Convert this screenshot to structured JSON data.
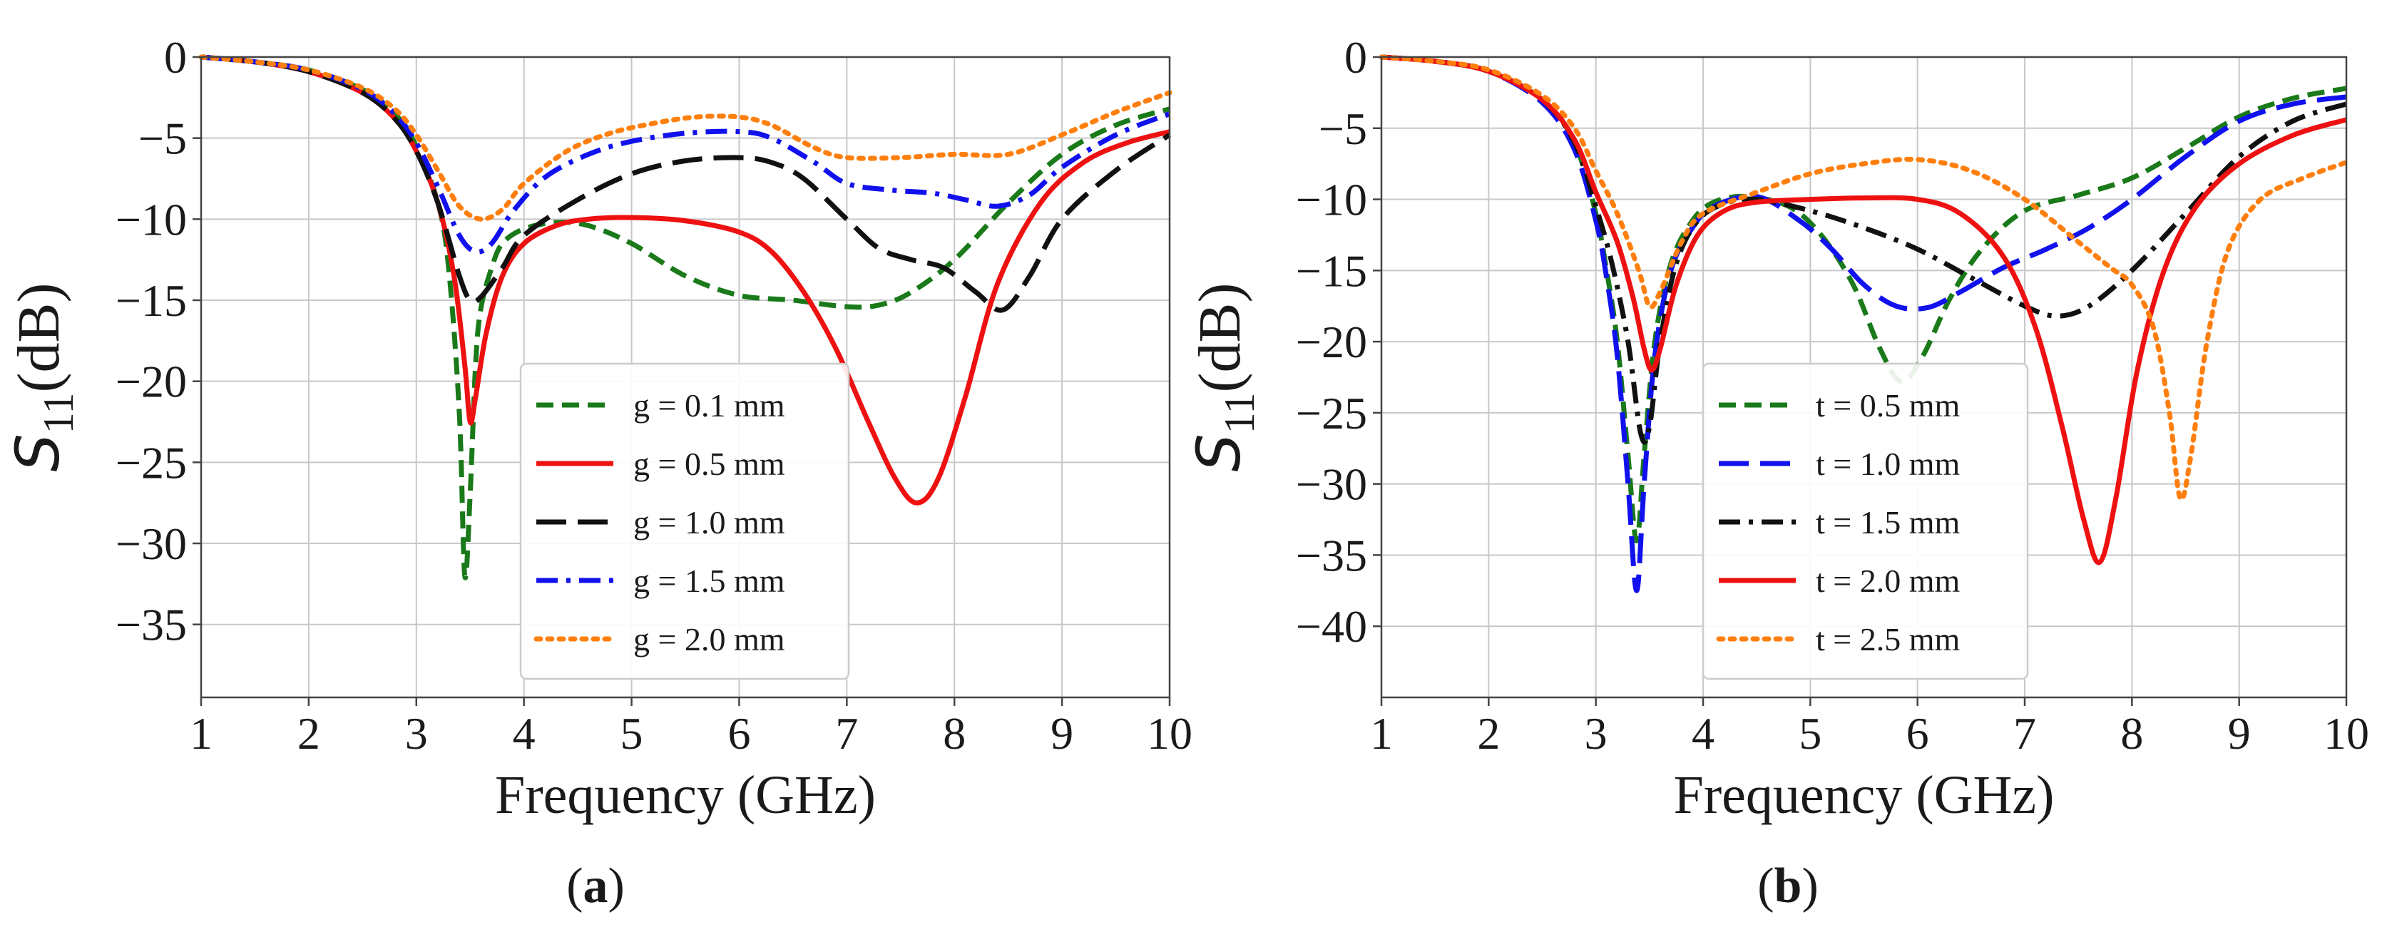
{
  "chart_data": [
    {
      "type": "line",
      "panel_label": "a",
      "xlabel": "Frequency (GHz)",
      "ylabel_main": "S",
      "ylabel_sub": "11",
      "ylabel_suffix": "(dB)",
      "xlim": [
        1,
        10
      ],
      "ylim": [
        -39.5,
        0
      ],
      "xticks": [
        1,
        2,
        3,
        4,
        5,
        6,
        7,
        8,
        9,
        10
      ],
      "yticks": [
        0,
        -5,
        -10,
        -15,
        -20,
        -25,
        -30,
        -35
      ],
      "ytick_labels": [
        "0",
        "−5",
        "−10",
        "−15",
        "−20",
        "−25",
        "−30",
        "−35"
      ],
      "grid": true,
      "legend_position": "lower-center",
      "series": [
        {
          "name": "g = 0.1 mm",
          "color": "#1a7a1a",
          "dash": "dashed",
          "x": [
            1,
            1.5,
            2,
            2.5,
            2.8,
            3.0,
            3.2,
            3.3,
            3.4,
            3.45,
            3.5,
            3.55,
            3.6,
            3.7,
            3.8,
            4.0,
            4.3,
            4.6,
            5.0,
            5.5,
            6.0,
            6.5,
            7.0,
            7.3,
            7.6,
            8.0,
            8.5,
            9.0,
            9.5,
            10
          ],
          "y": [
            0,
            -0.3,
            -0.8,
            -2.0,
            -3.5,
            -5.5,
            -9.0,
            -13.0,
            -22.0,
            -32.0,
            -27.0,
            -19.0,
            -15.5,
            -13.0,
            -11.5,
            -10.6,
            -10.2,
            -10.4,
            -11.5,
            -13.5,
            -14.7,
            -15.0,
            -15.4,
            -15.3,
            -14.5,
            -12.5,
            -9.0,
            -6.0,
            -4.2,
            -3.2
          ]
        },
        {
          "name": "g = 0.5 mm",
          "color": "#ee1111",
          "dash": "solid",
          "x": [
            1,
            1.5,
            2,
            2.5,
            2.8,
            3.0,
            3.2,
            3.35,
            3.45,
            3.5,
            3.55,
            3.65,
            3.8,
            4.0,
            4.3,
            4.6,
            5.0,
            5.5,
            6.0,
            6.3,
            6.6,
            6.9,
            7.2,
            7.45,
            7.65,
            7.85,
            8.1,
            8.4,
            8.8,
            9.2,
            9.6,
            10
          ],
          "y": [
            0,
            -0.3,
            -0.9,
            -2.2,
            -3.8,
            -5.8,
            -9.0,
            -13.5,
            -19.0,
            -22.5,
            -21.0,
            -17.0,
            -13.5,
            -11.5,
            -10.4,
            -10.0,
            -9.9,
            -10.1,
            -10.8,
            -12.0,
            -14.5,
            -18.0,
            -22.5,
            -26.0,
            -27.5,
            -26.0,
            -21.0,
            -14.0,
            -9.0,
            -6.5,
            -5.3,
            -4.6
          ]
        },
        {
          "name": "g = 1.0 mm",
          "color": "#111111",
          "dash": "longdash",
          "x": [
            1,
            1.5,
            2,
            2.5,
            2.8,
            3.0,
            3.2,
            3.4,
            3.5,
            3.6,
            3.8,
            4.0,
            4.5,
            5.0,
            5.5,
            6.0,
            6.3,
            6.6,
            7.0,
            7.3,
            7.6,
            7.9,
            8.2,
            8.45,
            8.7,
            9.0,
            9.5,
            10
          ],
          "y": [
            0,
            -0.3,
            -0.9,
            -2.2,
            -3.8,
            -5.8,
            -9.0,
            -13.5,
            -15.0,
            -14.8,
            -13.0,
            -11.0,
            -8.8,
            -7.2,
            -6.4,
            -6.2,
            -6.5,
            -7.5,
            -10.0,
            -11.8,
            -12.5,
            -13.0,
            -14.5,
            -15.6,
            -13.5,
            -10.0,
            -7.0,
            -4.8
          ]
        },
        {
          "name": "g = 1.5 mm",
          "color": "#1111ee",
          "dash": "dashdot",
          "x": [
            1,
            1.5,
            2,
            2.5,
            2.8,
            3.0,
            3.2,
            3.4,
            3.55,
            3.7,
            3.9,
            4.2,
            4.6,
            5.0,
            5.5,
            6.0,
            6.3,
            6.7,
            7.0,
            7.4,
            7.8,
            8.1,
            8.4,
            8.7,
            9.0,
            9.5,
            10
          ],
          "y": [
            0,
            -0.3,
            -0.8,
            -2.0,
            -3.5,
            -5.3,
            -8.0,
            -11.0,
            -12.0,
            -11.5,
            -9.5,
            -7.4,
            -6.0,
            -5.2,
            -4.7,
            -4.6,
            -5.0,
            -6.5,
            -7.8,
            -8.2,
            -8.4,
            -8.8,
            -9.2,
            -8.5,
            -6.8,
            -4.8,
            -3.5
          ]
        },
        {
          "name": "g = 2.0 mm",
          "color": "#ff7f0e",
          "dash": "dotted",
          "x": [
            1,
            1.5,
            2,
            2.5,
            2.8,
            3.0,
            3.2,
            3.4,
            3.6,
            3.8,
            4.0,
            4.4,
            4.8,
            5.2,
            5.6,
            6.0,
            6.3,
            6.7,
            7.0,
            7.5,
            8.0,
            8.5,
            9.0,
            9.5,
            10
          ],
          "y": [
            0,
            -0.3,
            -0.8,
            -1.9,
            -3.2,
            -4.8,
            -7.0,
            -9.2,
            -10.0,
            -9.4,
            -7.8,
            -5.8,
            -4.7,
            -4.1,
            -3.7,
            -3.7,
            -4.2,
            -5.6,
            -6.2,
            -6.2,
            -6.0,
            -6.0,
            -4.8,
            -3.4,
            -2.2
          ]
        }
      ]
    },
    {
      "type": "line",
      "panel_label": "b",
      "xlabel": "Frequency (GHz)",
      "ylabel_main": "S",
      "ylabel_sub": "11",
      "ylabel_suffix": "(dB)",
      "xlim": [
        1,
        10
      ],
      "ylim": [
        -45,
        0
      ],
      "xticks": [
        1,
        2,
        3,
        4,
        5,
        6,
        7,
        8,
        9,
        10
      ],
      "yticks": [
        0,
        -5,
        -10,
        -15,
        -20,
        -25,
        -30,
        -35,
        -40
      ],
      "ytick_labels": [
        "0",
        "−5",
        "−10",
        "−15",
        "−20",
        "−25",
        "−30",
        "−35",
        "−40"
      ],
      "grid": true,
      "legend_position": "lower-center",
      "series": [
        {
          "name": "t = 0.5 mm",
          "color": "#1a7a1a",
          "dash": "dashed",
          "x": [
            1,
            1.5,
            2,
            2.5,
            2.8,
            3.0,
            3.1,
            3.2,
            3.3,
            3.38,
            3.45,
            3.55,
            3.7,
            3.9,
            4.1,
            4.4,
            4.8,
            5.1,
            5.4,
            5.65,
            5.85,
            6.05,
            6.3,
            6.6,
            7.0,
            7.5,
            8.0,
            8.5,
            9.0,
            9.5,
            10
          ],
          "y": [
            0,
            -0.3,
            -1.0,
            -3.0,
            -6.0,
            -11.0,
            -15.0,
            -20.0,
            -28.0,
            -34.0,
            -28.0,
            -20.0,
            -14.5,
            -11.5,
            -10.2,
            -9.8,
            -10.5,
            -12.5,
            -16.0,
            -20.5,
            -22.8,
            -21.0,
            -17.0,
            -13.5,
            -10.8,
            -9.7,
            -8.5,
            -6.4,
            -4.2,
            -2.9,
            -2.2
          ]
        },
        {
          "name": "t = 1.0 mm",
          "color": "#1111ee",
          "dash": "longdash",
          "x": [
            1,
            1.5,
            2,
            2.5,
            2.8,
            3.0,
            3.1,
            3.2,
            3.3,
            3.38,
            3.45,
            3.55,
            3.7,
            3.9,
            4.1,
            4.5,
            4.9,
            5.2,
            5.5,
            5.8,
            6.1,
            6.4,
            6.8,
            7.2,
            7.6,
            8.0,
            8.5,
            9.0,
            9.5,
            10
          ],
          "y": [
            0,
            -0.3,
            -1.0,
            -3.2,
            -6.5,
            -11.5,
            -15.5,
            -21.0,
            -30.0,
            -37.5,
            -30.0,
            -21.0,
            -15.0,
            -12.0,
            -10.5,
            -9.8,
            -11.5,
            -13.5,
            -16.0,
            -17.5,
            -17.6,
            -16.5,
            -14.8,
            -13.5,
            -12.0,
            -10.0,
            -7.0,
            -4.5,
            -3.3,
            -2.8
          ]
        },
        {
          "name": "t = 1.5 mm",
          "color": "#111111",
          "dash": "dashdot",
          "x": [
            1,
            1.5,
            2,
            2.5,
            2.8,
            3.0,
            3.15,
            3.3,
            3.42,
            3.5,
            3.6,
            3.75,
            3.95,
            4.2,
            4.5,
            5.0,
            5.5,
            6.0,
            6.5,
            7.0,
            7.3,
            7.6,
            8.0,
            8.5,
            9.0,
            9.5,
            10
          ],
          "y": [
            0,
            -0.3,
            -1.0,
            -3.0,
            -6.0,
            -10.5,
            -14.5,
            -20.0,
            -26.5,
            -26.0,
            -20.0,
            -14.5,
            -11.5,
            -10.3,
            -10.0,
            -10.8,
            -12.0,
            -13.5,
            -15.5,
            -17.5,
            -18.2,
            -17.5,
            -15.0,
            -11.0,
            -7.0,
            -4.5,
            -3.3
          ]
        },
        {
          "name": "t = 2.0 mm",
          "color": "#ee1111",
          "dash": "solid",
          "x": [
            1,
            1.5,
            2,
            2.5,
            2.8,
            3.0,
            3.2,
            3.35,
            3.45,
            3.52,
            3.6,
            3.75,
            3.95,
            4.2,
            4.5,
            5.0,
            5.5,
            6.0,
            6.4,
            6.8,
            7.1,
            7.35,
            7.55,
            7.7,
            7.85,
            8.05,
            8.3,
            8.6,
            9.0,
            9.5,
            10
          ],
          "y": [
            0,
            -0.3,
            -1.0,
            -3.0,
            -5.8,
            -9.5,
            -13.0,
            -17.0,
            -20.5,
            -22.0,
            -20.5,
            -16.0,
            -12.5,
            -10.8,
            -10.2,
            -10.0,
            -9.9,
            -10.0,
            -11.0,
            -14.0,
            -19.0,
            -26.0,
            -32.5,
            -35.5,
            -31.0,
            -22.0,
            -15.0,
            -10.5,
            -7.5,
            -5.5,
            -4.4
          ]
        },
        {
          "name": "t = 2.5 mm",
          "color": "#ff7f0e",
          "dash": "dotted",
          "x": [
            1,
            1.5,
            2,
            2.5,
            2.8,
            3.0,
            3.2,
            3.4,
            3.5,
            3.6,
            3.8,
            4.0,
            4.5,
            5.0,
            5.5,
            6.0,
            6.5,
            7.0,
            7.5,
            7.8,
            8.0,
            8.2,
            8.35,
            8.45,
            8.55,
            8.7,
            8.9,
            9.2,
            9.6,
            10
          ],
          "y": [
            0,
            -0.3,
            -0.9,
            -2.7,
            -5.0,
            -8.0,
            -11.0,
            -15.0,
            -17.5,
            -16.5,
            -13.0,
            -11.0,
            -9.5,
            -8.2,
            -7.5,
            -7.2,
            -8.0,
            -10.0,
            -13.0,
            -14.8,
            -16.0,
            -19.0,
            -25.0,
            -31.0,
            -28.0,
            -20.0,
            -13.5,
            -10.0,
            -8.5,
            -7.4
          ]
        }
      ]
    }
  ],
  "captions": {
    "a_open": "(",
    "a_letter": "a",
    "a_close": ")",
    "b_open": "(",
    "b_letter": "b",
    "b_close": ")"
  }
}
